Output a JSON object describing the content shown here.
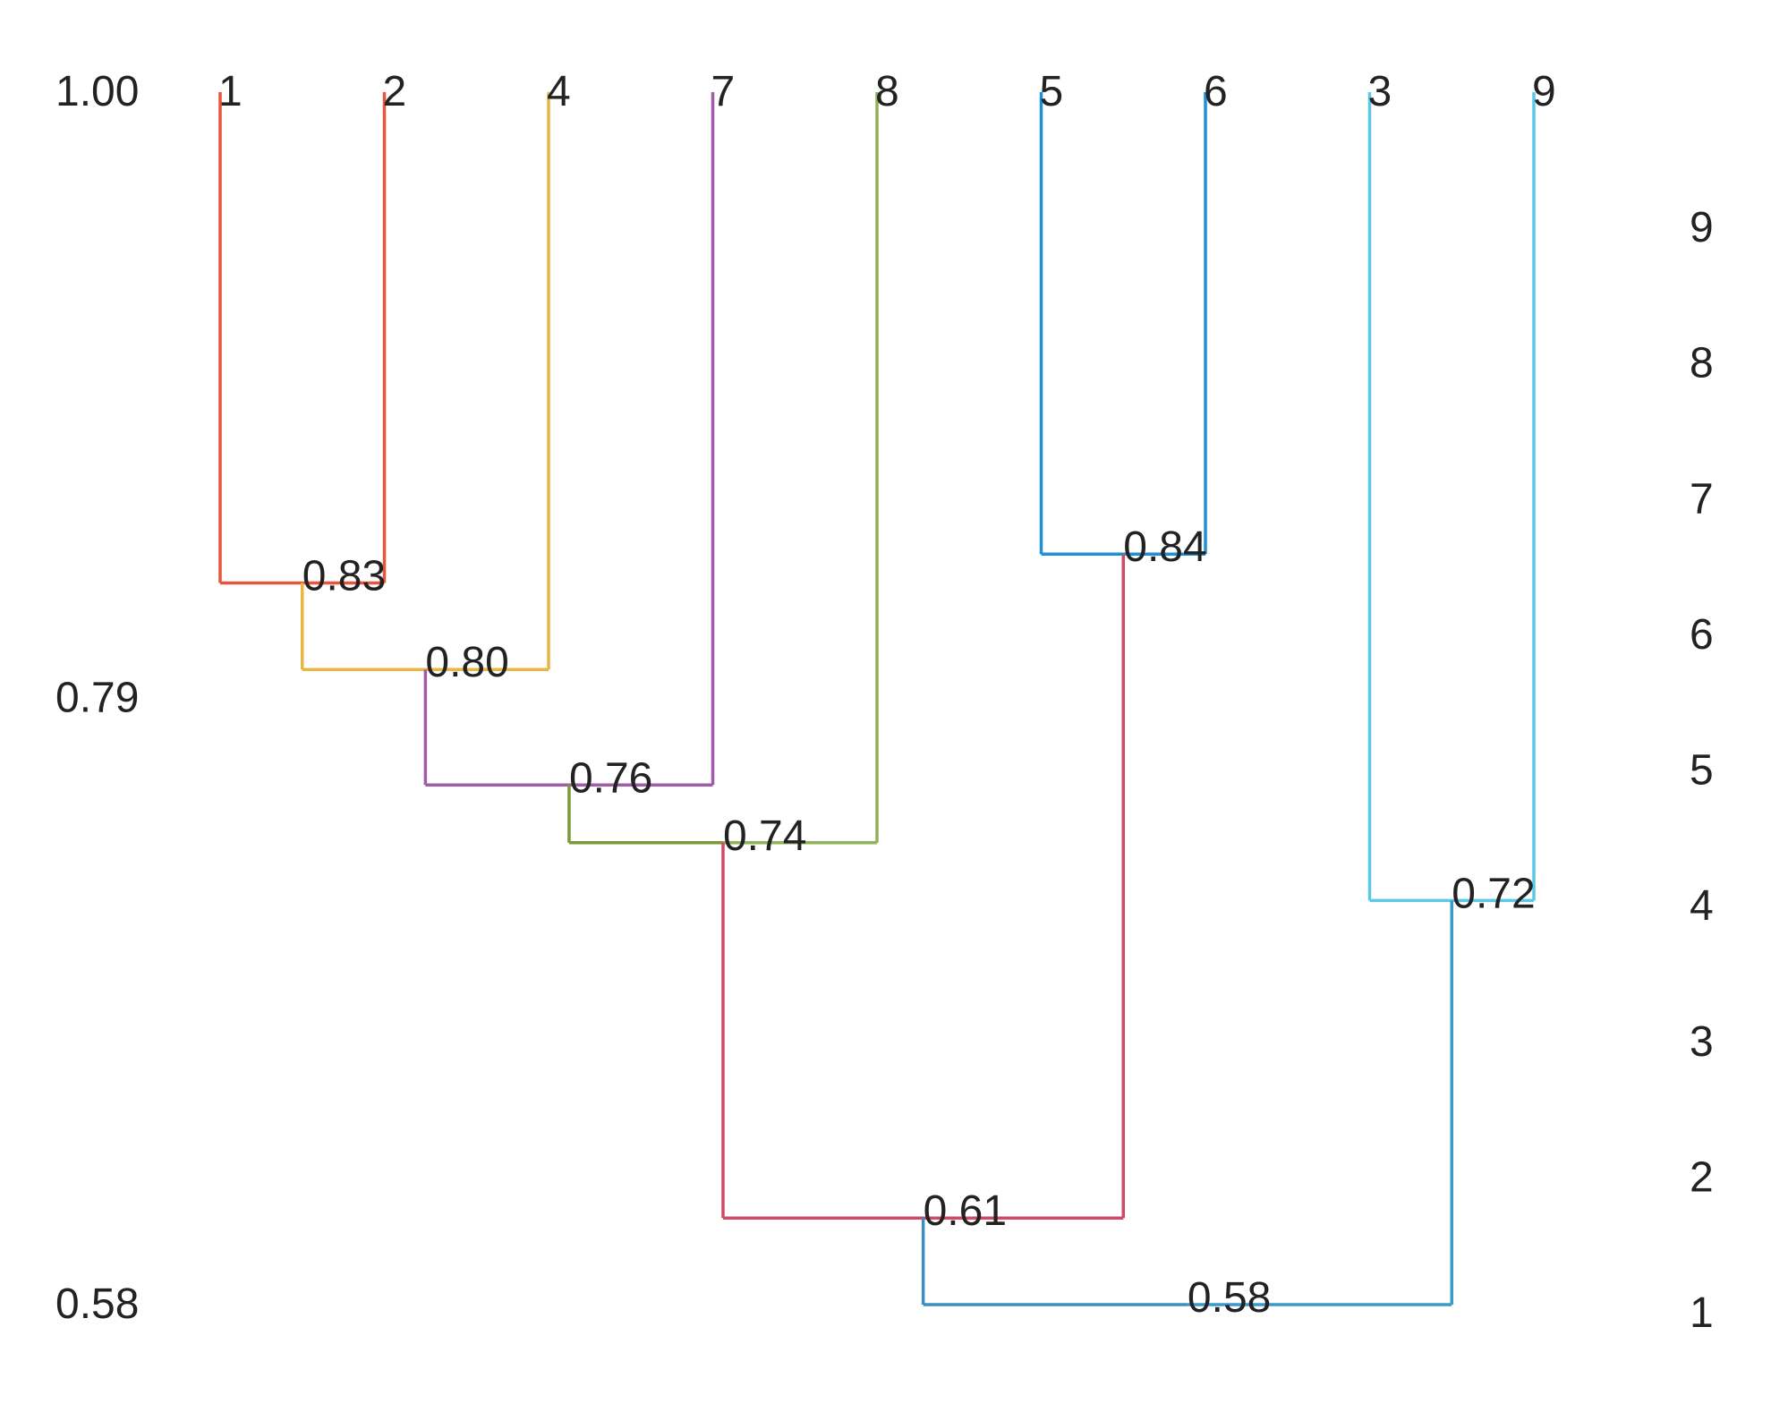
{
  "chart_data": {
    "type": "dendrogram",
    "similarity_axis": {
      "ticks": [
        "1.00",
        "0.79",
        "0.58"
      ],
      "range": [
        0.58,
        1.0
      ]
    },
    "rank_axis": {
      "labels": [
        "9",
        "8",
        "7",
        "6",
        "5",
        "4",
        "3",
        "2",
        "1"
      ]
    },
    "leaves": [
      "1",
      "2",
      "4",
      "7",
      "8",
      "5",
      "6",
      "3",
      "9"
    ],
    "merges": [
      {
        "id": "m1",
        "label": "0.83",
        "similarity": 0.83,
        "left": "1",
        "right": "2",
        "left_color": "#e8543c",
        "right_color": "#e8543c",
        "up_color": "#e8b642"
      },
      {
        "id": "m2",
        "label": "0.80",
        "similarity": 0.8,
        "left": "m1",
        "right": "4",
        "left_color": "#e8b642",
        "right_color": "#e8b642",
        "up_color": "#a05ca8"
      },
      {
        "id": "m3",
        "label": "0.76",
        "similarity": 0.76,
        "left": "m2",
        "right": "7",
        "left_color": "#a05ca8",
        "right_color": "#a05ca8",
        "up_color": "#7a9a3a"
      },
      {
        "id": "m4",
        "label": "0.74",
        "similarity": 0.74,
        "left": "m3",
        "right": "8",
        "left_color": "#7a9a3a",
        "right_color": "#8fb25a",
        "up_color": "#d04a68"
      },
      {
        "id": "m5",
        "label": "0.84",
        "similarity": 0.84,
        "left": "5",
        "right": "6",
        "left_color": "#1f8fd6",
        "right_color": "#1f8fd6",
        "up_color": "#d04a68"
      },
      {
        "id": "m6",
        "label": "0.61",
        "similarity": 0.61,
        "left": "m4",
        "right": "m5",
        "left_color": "#d04a68",
        "right_color": "#d04a68",
        "up_color": "#3a8fc0"
      },
      {
        "id": "m7",
        "label": "0.72",
        "similarity": 0.72,
        "left": "3",
        "right": "9",
        "left_color": "#5bc8e8",
        "right_color": "#5bc8e8",
        "up_color": "#3a9ac8"
      },
      {
        "id": "m8",
        "label": "0.58",
        "similarity": 0.58,
        "left": "m6",
        "right": "m7",
        "left_color": "#3a8fc0",
        "right_color": "#3a9ac8",
        "up_color": ""
      }
    ]
  }
}
